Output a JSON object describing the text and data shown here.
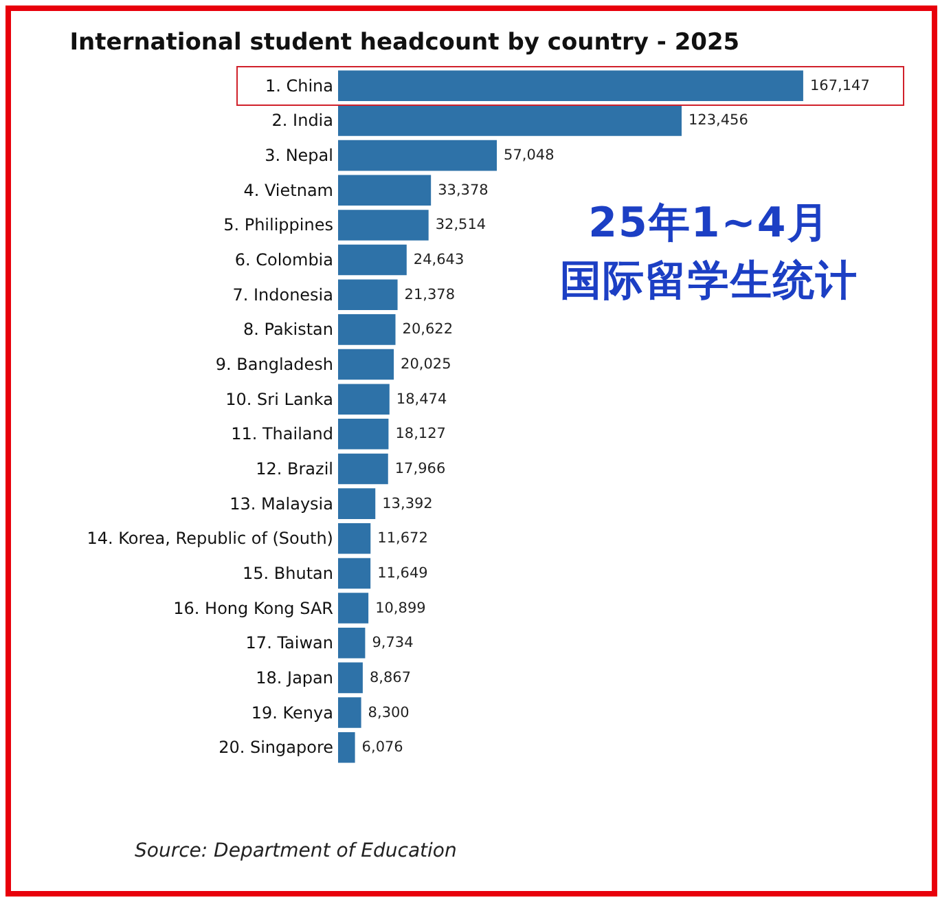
{
  "chart_data": {
    "type": "bar",
    "orientation": "horizontal",
    "title": "International student headcount by country - 2025",
    "categories": [
      "1. China",
      "2. India",
      "3. Nepal",
      "4. Vietnam",
      "5. Philippines",
      "6. Colombia",
      "7. Indonesia",
      "8. Pakistan",
      "9. Bangladesh",
      "10. Sri Lanka",
      "11. Thailand",
      "12. Brazil",
      "13. Malaysia",
      "14. Korea, Republic of (South)",
      "15. Bhutan",
      "16. Hong Kong SAR",
      "17. Taiwan",
      "18. Japan",
      "19. Kenya",
      "20. Singapore"
    ],
    "values": [
      167147,
      123456,
      57048,
      33378,
      32514,
      24643,
      21378,
      20622,
      20025,
      18474,
      18127,
      17966,
      13392,
      11672,
      11649,
      10899,
      9734,
      8867,
      8300,
      6076
    ],
    "color": "#2e72a8",
    "value_labels": [
      "167,147",
      "123,456",
      "57,048",
      "33,378",
      "32,514",
      "24,643",
      "21,378",
      "20,622",
      "20,025",
      "18,474",
      "18,127",
      "17,966",
      "13,392",
      "11,672",
      "11,649",
      "10,899",
      "9,734",
      "8,867",
      "8,300",
      "6,076"
    ],
    "annotations": [
      "25年1~4月",
      "国际留学生统计",
      "Source: Department of Education"
    ]
  }
}
